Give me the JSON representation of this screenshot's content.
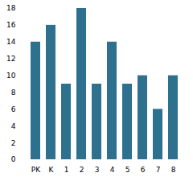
{
  "chart_data": {
    "type": "bar",
    "categories": [
      "PK",
      "K",
      "1",
      "2",
      "3",
      "4",
      "5",
      "6",
      "7",
      "8"
    ],
    "values": [
      14,
      16,
      9,
      18,
      9,
      14,
      9,
      10,
      6,
      10
    ],
    "color": "#2e718f",
    "ylim": [
      0,
      18
    ],
    "yticks": [
      0,
      2,
      4,
      6,
      8,
      10,
      12,
      14,
      16,
      18
    ],
    "grid": false
  }
}
